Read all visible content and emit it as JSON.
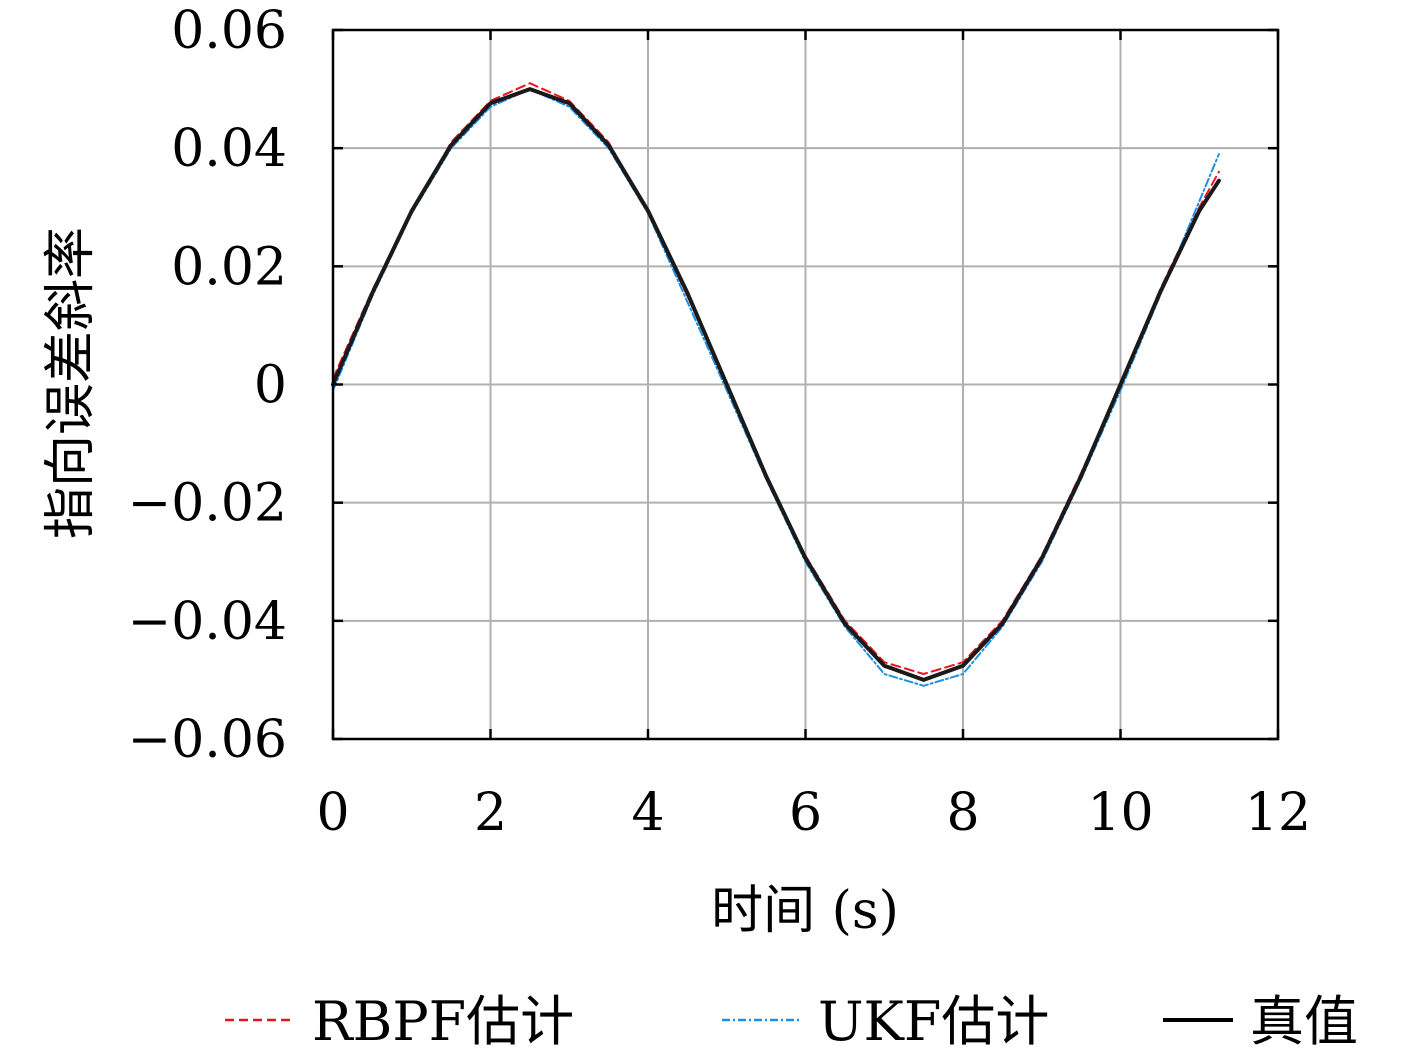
{
  "chart_data": {
    "type": "line",
    "title": "",
    "xlabel": "时间 (s)",
    "ylabel": "指向误差斜率",
    "xlim": [
      0,
      12
    ],
    "ylim": [
      -0.06,
      0.06
    ],
    "xticks": [
      0,
      2,
      4,
      6,
      8,
      10,
      12
    ],
    "xtick_labels": [
      "0",
      "2",
      "4",
      "6",
      "8",
      "10",
      "12"
    ],
    "yticks": [
      0.06,
      0.04,
      0.02,
      0,
      -0.02,
      -0.04,
      -0.06
    ],
    "ytick_labels": [
      "0.06",
      "0.04",
      "0.02",
      "0",
      "−0.02",
      "−0.04",
      "−0.06"
    ],
    "grid": true,
    "legend_position": "bottom",
    "series": [
      {
        "name": "RBPF估计",
        "style": "dashed",
        "color": "#e8141c",
        "x": [
          0,
          0.5,
          1,
          1.5,
          2,
          2.5,
          3,
          3.5,
          4,
          4.5,
          5,
          5.5,
          6,
          6.5,
          7,
          7.5,
          8,
          8.5,
          9,
          9.5,
          10,
          10.5,
          11,
          11.25
        ],
        "y": [
          0.001,
          0.016,
          0.029,
          0.041,
          0.048,
          0.051,
          0.048,
          0.041,
          0.029,
          0.015,
          0.0,
          -0.016,
          -0.029,
          -0.04,
          -0.047,
          -0.049,
          -0.047,
          -0.04,
          -0.029,
          -0.015,
          0.0,
          0.016,
          0.03,
          0.036
        ]
      },
      {
        "name": "UKF估计",
        "style": "dash-dot",
        "color": "#1e90e6",
        "x": [
          0,
          0.5,
          1,
          1.5,
          2,
          2.5,
          3,
          3.5,
          4,
          4.5,
          5,
          5.5,
          6,
          6.5,
          7,
          7.5,
          8,
          8.5,
          9,
          9.5,
          10,
          10.5,
          11,
          11.25
        ],
        "y": [
          -0.001,
          0.015,
          0.029,
          0.04,
          0.047,
          0.05,
          0.047,
          0.04,
          0.029,
          0.014,
          -0.001,
          -0.016,
          -0.03,
          -0.041,
          -0.049,
          -0.051,
          -0.049,
          -0.041,
          -0.03,
          -0.016,
          -0.001,
          0.015,
          0.031,
          0.039
        ]
      },
      {
        "name": "真值",
        "style": "solid",
        "color": "#1a1a1a",
        "x": [
          0,
          0.5,
          1,
          1.5,
          2,
          2.5,
          3,
          3.5,
          4,
          4.5,
          5,
          5.5,
          6,
          6.5,
          7,
          7.5,
          8,
          8.5,
          9,
          9.5,
          10,
          10.5,
          11,
          11.25
        ],
        "y": [
          0.0,
          0.0155,
          0.0294,
          0.0405,
          0.0476,
          0.05,
          0.0476,
          0.0405,
          0.0294,
          0.0155,
          0.0,
          -0.0155,
          -0.0294,
          -0.0405,
          -0.0476,
          -0.05,
          -0.0476,
          -0.0405,
          -0.0294,
          -0.0155,
          0.0,
          0.0155,
          0.0294,
          0.0345
        ]
      }
    ]
  }
}
